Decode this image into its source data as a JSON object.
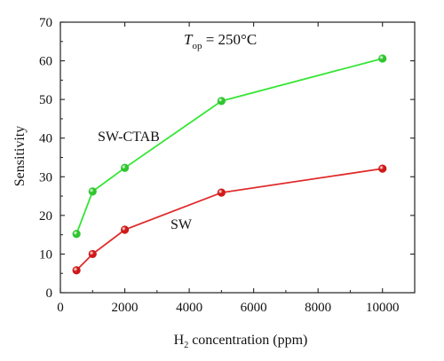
{
  "chart_data": {
    "type": "line",
    "title": "",
    "annotation": {
      "main": "T",
      "sub": "op",
      "rest": " = 250°C"
    },
    "xlabel": {
      "prefix": "H",
      "sub": "2",
      "rest": " concentration (ppm)"
    },
    "ylabel": "Sensitivity",
    "xlim": [
      0,
      11000
    ],
    "ylim": [
      0,
      70
    ],
    "x_ticks": [
      0,
      2000,
      4000,
      6000,
      8000,
      10000
    ],
    "x_tick_labels": [
      "0",
      "2000",
      "4000",
      "6000",
      "8000",
      "10000"
    ],
    "y_ticks": [
      0,
      10,
      20,
      30,
      40,
      50,
      60,
      70
    ],
    "y_tick_labels": [
      "0",
      "10",
      "20",
      "30",
      "40",
      "50",
      "60",
      "70"
    ],
    "grid": false,
    "legend": "none",
    "series": [
      {
        "name": "SW-CTAB",
        "color": "#33e633",
        "marker_color": "#2ec62e",
        "x": [
          500,
          1000,
          2000,
          5000,
          10000
        ],
        "y": [
          15.2,
          26.2,
          32.3,
          49.6,
          60.6
        ]
      },
      {
        "name": "SW",
        "color": "#e02a2a",
        "marker_color": "#d01818",
        "x": [
          500,
          1000,
          2000,
          5000,
          10000
        ],
        "y": [
          5.8,
          10.0,
          16.3,
          25.9,
          32.1
        ]
      }
    ]
  }
}
